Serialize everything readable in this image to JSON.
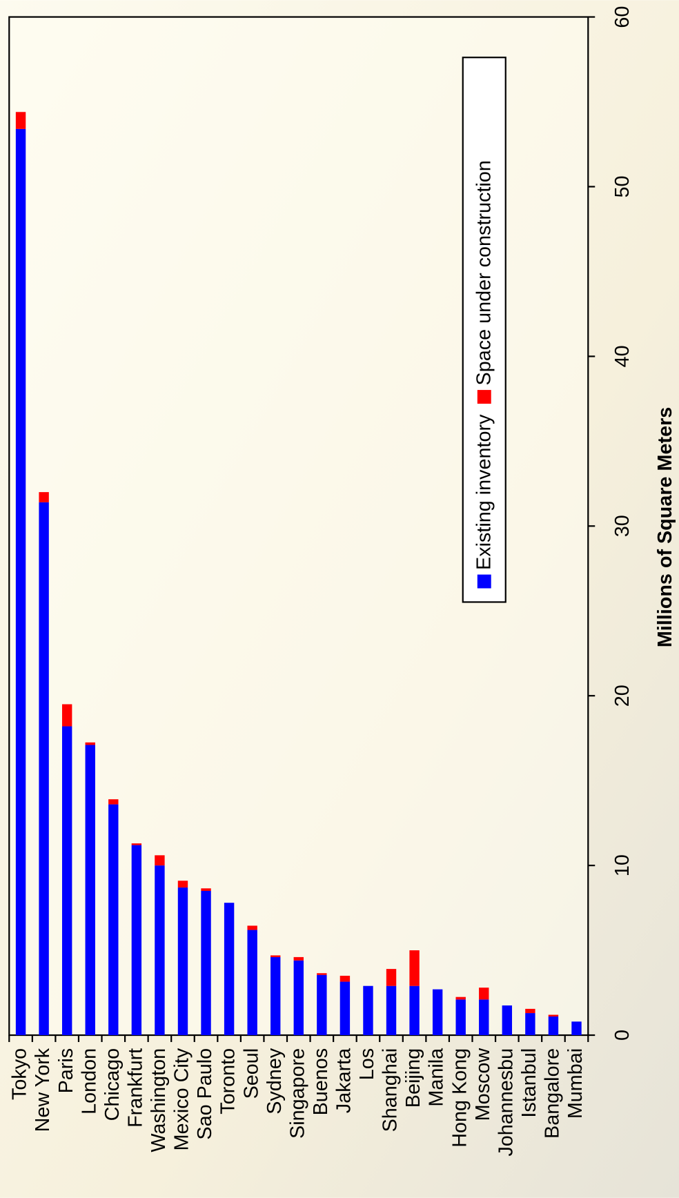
{
  "chart_data": {
    "type": "bar",
    "stacked": true,
    "x_label": "Millions of Square Meters",
    "categories": [
      "Tokyo",
      "New York",
      "Paris",
      "London",
      "Chicago",
      "Frankfurt",
      "Washington",
      "Mexico City",
      "Sao Paulo",
      "Toronto",
      "Seoul",
      "Sydney",
      "Singapore",
      "Buenos",
      "Jakarta",
      "Los",
      "Shanghai",
      "Beijing",
      "Manila",
      "Hong Kong",
      "Moscow",
      "Johannesbu",
      "Istanbul",
      "Bangalore",
      "Mumbai"
    ],
    "series": [
      {
        "name": "Existing inventory",
        "color": "#0000ff",
        "values": [
          53.4,
          31.4,
          18.2,
          17.1,
          13.6,
          11.2,
          10.0,
          8.7,
          8.5,
          7.8,
          6.2,
          4.6,
          4.4,
          3.55,
          3.15,
          2.9,
          2.9,
          2.9,
          2.7,
          2.1,
          2.1,
          1.75,
          1.3,
          1.1,
          0.8
        ]
      },
      {
        "name": "Space under construction",
        "color": "#ff0000",
        "values": [
          1.0,
          0.6,
          1.3,
          0.15,
          0.3,
          0.1,
          0.6,
          0.4,
          0.15,
          0,
          0.25,
          0.1,
          0.2,
          0.1,
          0.35,
          0,
          1.0,
          2.1,
          0,
          0.15,
          0.7,
          0,
          0.25,
          0.1,
          0
        ]
      }
    ],
    "ylim": [
      0,
      60
    ],
    "yticks": [
      0,
      10,
      20,
      30,
      40,
      50,
      60
    ]
  }
}
